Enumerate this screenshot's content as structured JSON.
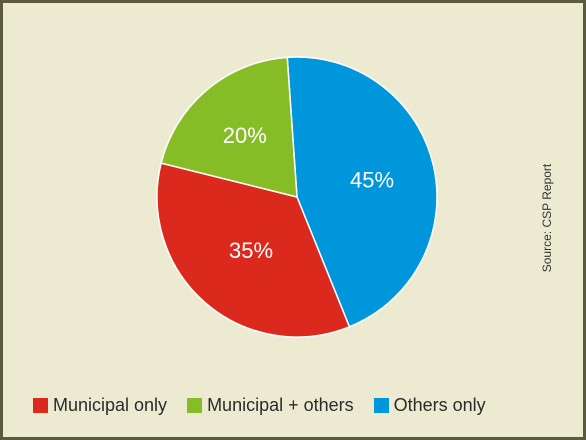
{
  "chart_data": {
    "type": "pie",
    "categories": [
      "Municipal only",
      "Municipal + others",
      "Others only"
    ],
    "values": [
      35,
      20,
      45
    ],
    "labels": [
      "35%",
      "20%",
      "45%"
    ],
    "colors": [
      "#dc291e",
      "#86bc25",
      "#0096db"
    ],
    "legend_position": "bottom"
  },
  "legend": [
    {
      "label": "Municipal only",
      "color": "#dc291e"
    },
    {
      "label": "Municipal + others",
      "color": "#86bc25"
    },
    {
      "label": "Others only",
      "color": "#0096db"
    }
  ],
  "source": "Source: CSP Report"
}
